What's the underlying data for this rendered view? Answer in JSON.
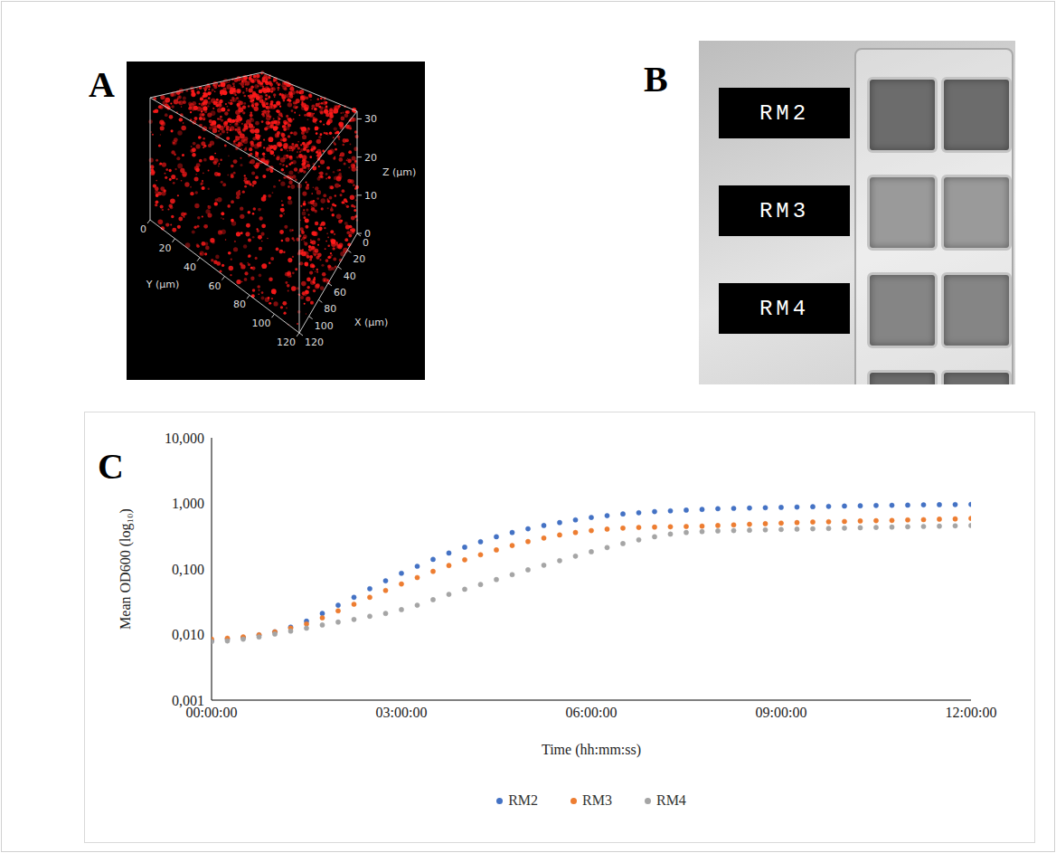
{
  "panel_labels": [
    "A",
    "B",
    "C"
  ],
  "panel_a": {
    "x_label": "X (μm)",
    "y_label": "Y (μm)",
    "z_label": "Z (μm)",
    "xlim": [
      0,
      120
    ],
    "ylim": [
      0,
      120
    ],
    "zlim": [
      0,
      32
    ],
    "xticks": [
      0,
      20,
      40,
      60,
      80,
      100,
      120
    ],
    "yticks": [
      0,
      20,
      40,
      60,
      80,
      100,
      120
    ],
    "zticks": [
      0,
      10,
      20,
      30
    ]
  },
  "panel_b": {
    "well_labels": [
      "RM2",
      "RM3",
      "RM4"
    ]
  },
  "chart_data": {
    "type": "line",
    "x_label": "Time (hh:mm:ss)",
    "y_label": "Mean OD600 (log₁₀)",
    "log": "y",
    "grid": false,
    "legend": "bottom",
    "line_style": "dotted",
    "marker": "circle",
    "xlim": [
      0,
      12
    ],
    "xticks": [
      {
        "value": 0,
        "label": "00:00:00"
      },
      {
        "value": 3,
        "label": "03:00:00"
      },
      {
        "value": 6,
        "label": "06:00:00"
      },
      {
        "value": 9,
        "label": "09:00:00"
      },
      {
        "value": 12,
        "label": "12:00:00"
      }
    ],
    "ylim": [
      0.001,
      10
    ],
    "yticks": [
      {
        "value": 0.001,
        "label": "0,001"
      },
      {
        "value": 0.01,
        "label": "0,010"
      },
      {
        "value": 0.1,
        "label": "0,100"
      },
      {
        "value": 1,
        "label": "1,000"
      },
      {
        "value": 10,
        "label": "10,000"
      }
    ],
    "x": [
      0,
      0.25,
      0.5,
      0.75,
      1,
      1.25,
      1.5,
      1.75,
      2,
      2.25,
      2.5,
      2.75,
      3,
      3.25,
      3.5,
      3.75,
      4,
      4.25,
      4.5,
      4.75,
      5,
      5.25,
      5.5,
      5.75,
      6,
      6.25,
      6.5,
      6.75,
      7,
      7.25,
      7.5,
      7.75,
      8,
      8.25,
      8.5,
      8.75,
      9,
      9.25,
      9.5,
      9.75,
      10,
      10.25,
      10.5,
      10.75,
      11,
      11.25,
      11.5,
      11.75,
      12
    ],
    "series": [
      {
        "name": "RM2",
        "color": "#4472c4",
        "values": [
          0.008,
          0.0085,
          0.009,
          0.0098,
          0.011,
          0.013,
          0.016,
          0.021,
          0.028,
          0.037,
          0.05,
          0.066,
          0.086,
          0.11,
          0.14,
          0.175,
          0.215,
          0.26,
          0.31,
          0.36,
          0.41,
          0.46,
          0.51,
          0.56,
          0.61,
          0.65,
          0.69,
          0.72,
          0.75,
          0.77,
          0.79,
          0.81,
          0.83,
          0.84,
          0.85,
          0.86,
          0.87,
          0.88,
          0.89,
          0.9,
          0.91,
          0.92,
          0.93,
          0.935,
          0.94,
          0.95,
          0.955,
          0.96,
          0.965
        ]
      },
      {
        "name": "RM3",
        "color": "#ed7d31",
        "values": [
          0.0085,
          0.0088,
          0.0092,
          0.0099,
          0.011,
          0.0125,
          0.0145,
          0.018,
          0.023,
          0.029,
          0.037,
          0.047,
          0.059,
          0.074,
          0.092,
          0.113,
          0.138,
          0.165,
          0.195,
          0.228,
          0.262,
          0.296,
          0.33,
          0.36,
          0.385,
          0.405,
          0.42,
          0.43,
          0.435,
          0.44,
          0.445,
          0.45,
          0.46,
          0.47,
          0.48,
          0.49,
          0.5,
          0.51,
          0.52,
          0.525,
          0.53,
          0.54,
          0.545,
          0.55,
          0.56,
          0.565,
          0.575,
          0.58,
          0.59
        ]
      },
      {
        "name": "RM4",
        "color": "#a5a5a5",
        "values": [
          0.0078,
          0.008,
          0.0085,
          0.0092,
          0.0102,
          0.0113,
          0.0125,
          0.014,
          0.0155,
          0.017,
          0.019,
          0.021,
          0.024,
          0.028,
          0.034,
          0.041,
          0.049,
          0.058,
          0.069,
          0.082,
          0.097,
          0.114,
          0.134,
          0.157,
          0.183,
          0.212,
          0.244,
          0.278,
          0.31,
          0.34,
          0.36,
          0.372,
          0.38,
          0.385,
          0.39,
          0.395,
          0.4,
          0.405,
          0.41,
          0.415,
          0.42,
          0.425,
          0.43,
          0.435,
          0.44,
          0.445,
          0.45,
          0.455,
          0.46
        ]
      }
    ]
  }
}
